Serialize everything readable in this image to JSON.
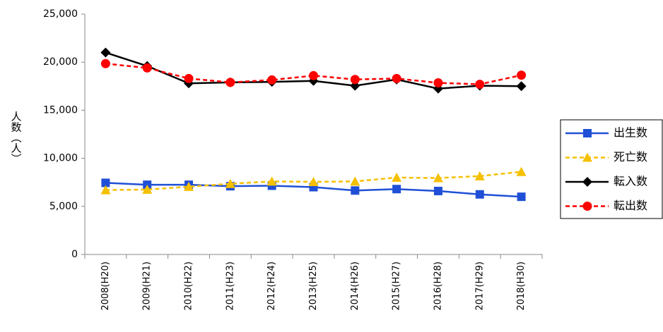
{
  "chart_data": {
    "type": "line",
    "y_label": "人数（人）",
    "categories": [
      "2008(H20)",
      "2009(H21)",
      "2010(H22)",
      "2011(H23)",
      "2012(H24)",
      "2013(H25)",
      "2014(H26)",
      "2015(H27)",
      "2016(H28)",
      "2017(H29)",
      "2018(H30)"
    ],
    "series": [
      {
        "name": "出生数",
        "color": "#1f4fd6",
        "marker": "square",
        "dashed": false,
        "values": [
          7450,
          7250,
          7250,
          7100,
          7150,
          7000,
          6650,
          6800,
          6600,
          6250,
          6000
        ]
      },
      {
        "name": "死亡数",
        "color": "#f5c000",
        "marker": "triangle",
        "dashed": true,
        "values": [
          6700,
          6750,
          7050,
          7350,
          7600,
          7550,
          7600,
          8000,
          7950,
          8150,
          8600
        ]
      },
      {
        "name": "転入数",
        "color": "#000000",
        "marker": "diamond",
        "dashed": false,
        "values": [
          21000,
          19600,
          17800,
          17900,
          17950,
          18050,
          17550,
          18200,
          17250,
          17550,
          17500
        ]
      },
      {
        "name": "転出数",
        "color": "#ff0000",
        "marker": "circle",
        "dashed": true,
        "values": [
          19850,
          19400,
          18300,
          17900,
          18150,
          18600,
          18200,
          18300,
          17850,
          17700,
          18650
        ]
      }
    ],
    "ylim": [
      0,
      25000
    ],
    "yticks": [
      0,
      {
        "value": 5000,
        "label": "5,000"
      },
      {
        "value": 10000,
        "label": "10,000"
      },
      {
        "value": 15000,
        "label": "15,000"
      },
      {
        "value": 20000,
        "label": "20,000"
      },
      {
        "value": 25000,
        "label": "25,000"
      }
    ],
    "grid": false,
    "legend": "right"
  }
}
